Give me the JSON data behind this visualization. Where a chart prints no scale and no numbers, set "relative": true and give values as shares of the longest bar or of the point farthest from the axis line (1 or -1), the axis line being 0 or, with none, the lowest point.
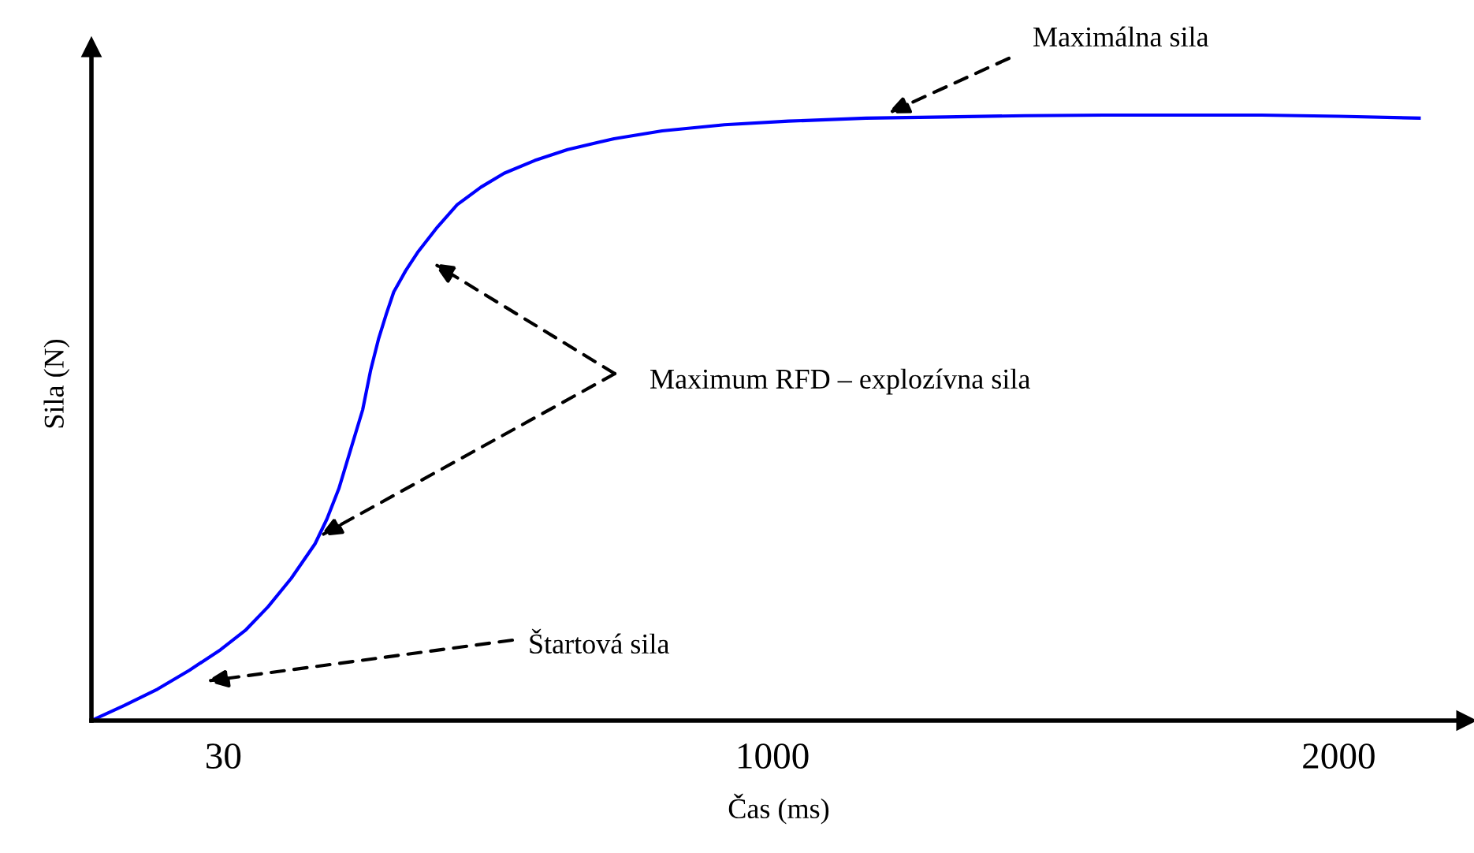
{
  "chart_data": {
    "type": "line",
    "relative": true,
    "xlabel": "Čas (ms)",
    "ylabel": "Sila (N)",
    "x": [
      -203,
      -145,
      -86,
      -30,
      25,
      70,
      109,
      150,
      192,
      213,
      234,
      255,
      276,
      290,
      304,
      318,
      331,
      352,
      373,
      408,
      443,
      485,
      526,
      580,
      638,
      720,
      805,
      915,
      1028,
      1165,
      1306,
      1445,
      1585,
      1725,
      1864,
      2000,
      2142
    ],
    "series": [
      {
        "color": "#0000ff",
        "values": [
          0,
          0.025,
          0.052,
          0.083,
          0.117,
          0.15,
          0.188,
          0.235,
          0.292,
          0.333,
          0.383,
          0.448,
          0.513,
          0.578,
          0.63,
          0.672,
          0.708,
          0.743,
          0.773,
          0.815,
          0.852,
          0.881,
          0.904,
          0.925,
          0.943,
          0.961,
          0.974,
          0.984,
          0.99,
          0.995,
          0.997,
          0.999,
          1.0,
          1.0,
          1.0,
          0.998,
          0.995
        ]
      }
    ],
    "xlim": [
      -203,
      2225
    ],
    "xticks": [
      30,
      1000,
      2000
    ],
    "tick_labels": "x",
    "annotations": [
      "Maximálna sila",
      "Maximum RFD – explozívna sila",
      "Štartová sila"
    ]
  }
}
